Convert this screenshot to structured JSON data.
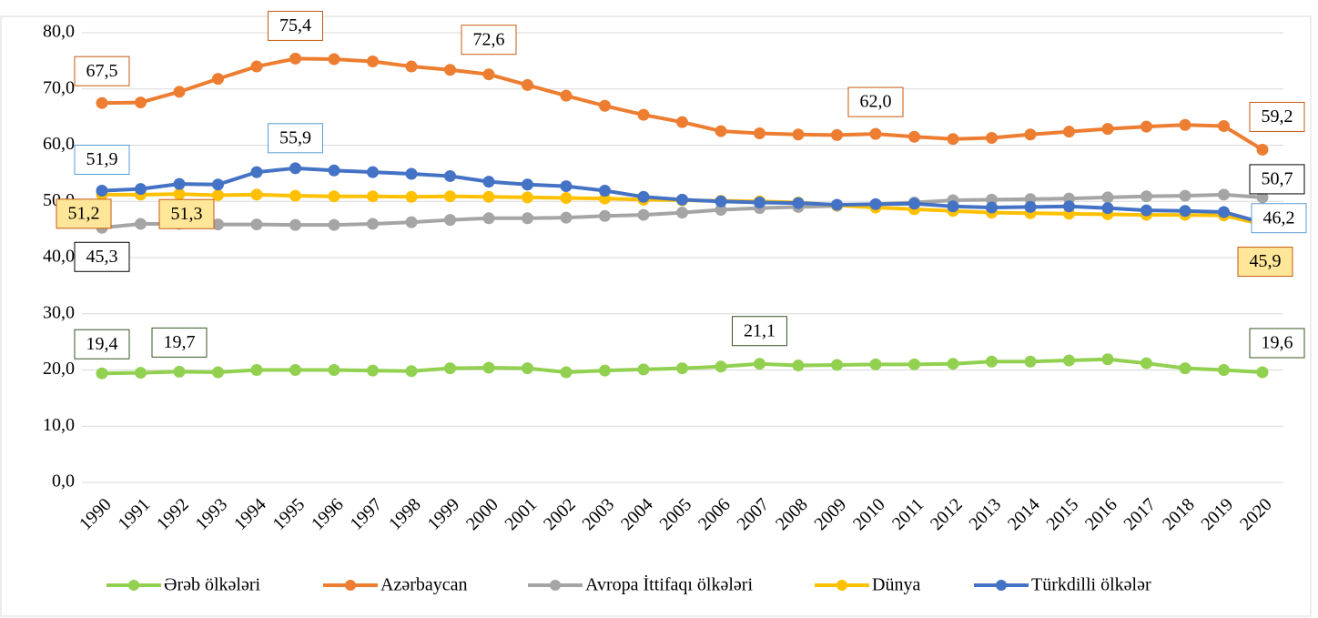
{
  "chart_data": {
    "type": "line",
    "categories": [
      "1990",
      "1991",
      "1992",
      "1993",
      "1994",
      "1995",
      "1996",
      "1997",
      "1998",
      "1999",
      "2000",
      "2001",
      "2002",
      "2003",
      "2004",
      "2005",
      "2006",
      "2007",
      "2008",
      "2009",
      "2010",
      "2011",
      "2012",
      "2013",
      "2014",
      "2015",
      "2016",
      "2017",
      "2018",
      "2019",
      "2020"
    ],
    "ylim": [
      0,
      80
    ],
    "yticks": [
      {
        "value": 0,
        "label": "0,0"
      },
      {
        "value": 10,
        "label": "10,0"
      },
      {
        "value": 20,
        "label": "20,0"
      },
      {
        "value": 30,
        "label": "30,0"
      },
      {
        "value": 40,
        "label": "40,0"
      },
      {
        "value": 50,
        "label": "50,0"
      },
      {
        "value": 60,
        "label": "60,0"
      },
      {
        "value": 70,
        "label": "70,0"
      },
      {
        "value": 80,
        "label": "80,0"
      }
    ],
    "grid": true,
    "legend": "bottom",
    "series": [
      {
        "name": "Ərəb ölkələri",
        "color": "#92d050",
        "values": [
          19.4,
          19.5,
          19.7,
          19.6,
          20.0,
          20.0,
          20.0,
          19.9,
          19.8,
          20.3,
          20.4,
          20.3,
          19.6,
          19.9,
          20.1,
          20.3,
          20.6,
          21.1,
          20.8,
          20.9,
          21.0,
          21.0,
          21.1,
          21.5,
          21.5,
          21.7,
          21.9,
          21.2,
          20.3,
          20.0,
          19.6
        ],
        "value_labels": [
          "19,4",
          null,
          "19,7",
          null,
          null,
          null,
          null,
          null,
          null,
          null,
          null,
          null,
          null,
          null,
          null,
          null,
          null,
          "21,1",
          null,
          null,
          null,
          null,
          null,
          null,
          null,
          null,
          null,
          null,
          null,
          null,
          "19,6"
        ]
      },
      {
        "name": "Azərbaycan",
        "color": "#ed7d31",
        "values": [
          67.5,
          67.6,
          69.5,
          71.8,
          74.0,
          75.4,
          75.3,
          74.9,
          74.0,
          73.4,
          72.6,
          70.7,
          68.8,
          67.0,
          65.4,
          64.1,
          62.5,
          62.1,
          61.9,
          61.8,
          62.0,
          61.5,
          61.1,
          61.3,
          61.9,
          62.4,
          62.9,
          63.3,
          63.6,
          63.4,
          59.2
        ],
        "value_labels": [
          "67,5",
          null,
          null,
          null,
          null,
          "75,4",
          null,
          null,
          null,
          null,
          "72,6",
          null,
          null,
          null,
          null,
          null,
          null,
          null,
          null,
          null,
          "62,0",
          null,
          null,
          null,
          null,
          null,
          null,
          null,
          null,
          null,
          "59,2"
        ]
      },
      {
        "name": "Avropa İttifaqı ölkələri",
        "color": "#a5a5a5",
        "values": [
          45.3,
          46.0,
          46.0,
          45.9,
          45.9,
          45.8,
          45.8,
          46.0,
          46.3,
          46.7,
          47.0,
          47.0,
          47.1,
          47.4,
          47.6,
          48.0,
          48.5,
          48.8,
          49.0,
          49.2,
          49.5,
          49.8,
          50.2,
          50.3,
          50.4,
          50.5,
          50.7,
          50.9,
          51.0,
          51.2,
          50.7
        ],
        "value_labels": [
          "45,3",
          null,
          null,
          null,
          null,
          null,
          null,
          null,
          null,
          null,
          null,
          null,
          null,
          null,
          null,
          null,
          null,
          null,
          null,
          null,
          null,
          null,
          null,
          null,
          null,
          null,
          null,
          null,
          null,
          null,
          "50,7"
        ]
      },
      {
        "name": "Dünya",
        "color": "#ffc000",
        "values": [
          51.2,
          51.2,
          51.3,
          51.1,
          51.2,
          51.0,
          50.9,
          50.9,
          50.8,
          50.9,
          50.8,
          50.7,
          50.6,
          50.5,
          50.3,
          50.2,
          50.1,
          50.0,
          49.8,
          49.3,
          48.9,
          48.6,
          48.3,
          48.0,
          47.9,
          47.8,
          47.7,
          47.6,
          47.6,
          47.5,
          45.9
        ],
        "value_labels": [
          "51,2",
          null,
          "51,3",
          null,
          null,
          null,
          null,
          null,
          null,
          null,
          null,
          null,
          null,
          null,
          null,
          null,
          null,
          null,
          null,
          null,
          null,
          null,
          null,
          null,
          null,
          null,
          null,
          null,
          null,
          null,
          "45,9"
        ]
      },
      {
        "name": "Türkdilli ölkələr",
        "color": "#4472c4",
        "values": [
          51.9,
          52.2,
          53.1,
          53.0,
          55.2,
          55.9,
          55.5,
          55.2,
          54.9,
          54.5,
          53.5,
          53.0,
          52.7,
          51.9,
          50.8,
          50.3,
          50.0,
          49.8,
          49.7,
          49.4,
          49.5,
          49.6,
          49.1,
          48.9,
          49.0,
          49.1,
          48.8,
          48.4,
          48.3,
          48.1,
          46.2
        ],
        "value_labels": [
          "51,9",
          null,
          null,
          null,
          null,
          "55,9",
          null,
          null,
          null,
          null,
          null,
          null,
          null,
          null,
          null,
          null,
          null,
          null,
          null,
          null,
          null,
          null,
          null,
          null,
          null,
          null,
          null,
          null,
          null,
          null,
          "46,2"
        ]
      }
    ]
  }
}
